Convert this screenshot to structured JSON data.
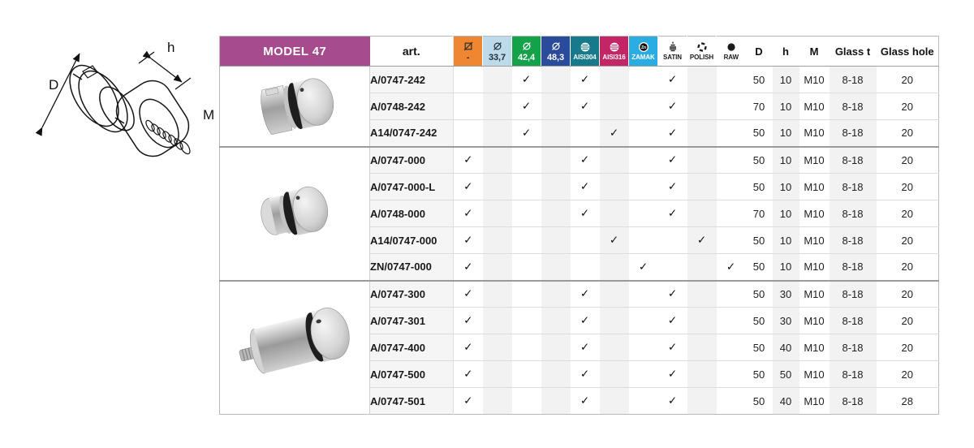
{
  "page": {
    "title": "MODEL 47",
    "check_glyph": "✓"
  },
  "colors": {
    "model_header_bg": "#A74B8F",
    "stripe": "#f2f2f2"
  },
  "diagram": {
    "labels": {
      "D": "D",
      "h": "h",
      "M": "M"
    }
  },
  "table": {
    "art_header": "art.",
    "option_columns": [
      {
        "id": "flat",
        "icon": "no-tube-icon",
        "label": "-",
        "bg": "#EF8632",
        "fg": "#2d2d2d",
        "big_label": true
      },
      {
        "id": "d337",
        "icon": "diameter-icon",
        "label": "33,7",
        "bg": "#BCDAEA",
        "fg": "#22303c",
        "big_label": true
      },
      {
        "id": "d424",
        "icon": "diameter-icon",
        "label": "42,4",
        "bg": "#13A24A",
        "fg": "#ffffff",
        "big_label": true
      },
      {
        "id": "d483",
        "icon": "diameter-icon",
        "label": "48,3",
        "bg": "#2A4B9B",
        "fg": "#ffffff",
        "big_label": true
      },
      {
        "id": "aisi304",
        "icon": "steel-sphere-icon",
        "label": "AISI304",
        "bg": "#177A8C",
        "fg": "#ffffff",
        "big_label": false
      },
      {
        "id": "aisi316",
        "icon": "steel-sphere-icon",
        "label": "AISI316",
        "bg": "#C32566",
        "fg": "#ffffff",
        "big_label": false
      },
      {
        "id": "zamak",
        "icon": "zinc-icon",
        "label": "ZAMAK",
        "bg": "#2BACE2",
        "fg": "#ffffff",
        "big_label": false
      },
      {
        "id": "satin",
        "icon": "satin-finish-icon",
        "label": "SATIN",
        "bg": "#ffffff",
        "fg": "#1a1a1a",
        "big_label": false
      },
      {
        "id": "polish",
        "icon": "polish-finish-icon",
        "label": "POLISH",
        "bg": "#ffffff",
        "fg": "#1a1a1a",
        "big_label": false
      },
      {
        "id": "raw",
        "icon": "raw-finish-icon",
        "label": "RAW",
        "bg": "#ffffff",
        "fg": "#1a1a1a",
        "big_label": false
      }
    ],
    "spec_columns": [
      "D",
      "h",
      "M",
      "Glass t",
      "Glass hole"
    ],
    "groups": [
      {
        "photo": "tube-mount-adapter",
        "rows": [
          {
            "art": "A/0747-242",
            "checks": [
              "d424",
              "aisi304",
              "satin"
            ],
            "specs": [
              "50",
              "10",
              "M10",
              "8-18",
              "20"
            ]
          },
          {
            "art": "A/0748-242",
            "checks": [
              "d424",
              "aisi304",
              "satin"
            ],
            "specs": [
              "70",
              "10",
              "M10",
              "8-18",
              "20"
            ]
          },
          {
            "art": "A14/0747-242",
            "checks": [
              "d424",
              "aisi316",
              "satin"
            ],
            "specs": [
              "50",
              "10",
              "M10",
              "8-18",
              "20"
            ]
          }
        ]
      },
      {
        "photo": "flat-mount-adapter",
        "rows": [
          {
            "art": "A/0747-000",
            "checks": [
              "flat",
              "aisi304",
              "satin"
            ],
            "specs": [
              "50",
              "10",
              "M10",
              "8-18",
              "20"
            ]
          },
          {
            "art": "A/0747-000-L",
            "checks": [
              "flat",
              "aisi304",
              "satin"
            ],
            "specs": [
              "50",
              "10",
              "M10",
              "8-18",
              "20"
            ]
          },
          {
            "art": "A/0748-000",
            "checks": [
              "flat",
              "aisi304",
              "satin"
            ],
            "specs": [
              "70",
              "10",
              "M10",
              "8-18",
              "20"
            ]
          },
          {
            "art": "A14/0747-000",
            "checks": [
              "flat",
              "aisi316",
              "polish"
            ],
            "specs": [
              "50",
              "10",
              "M10",
              "8-18",
              "20"
            ]
          },
          {
            "art": "ZN/0747-000",
            "checks": [
              "flat",
              "zamak",
              "raw"
            ],
            "specs": [
              "50",
              "10",
              "M10",
              "8-18",
              "20"
            ]
          }
        ]
      },
      {
        "photo": "standoff-adapter",
        "rows": [
          {
            "art": "A/0747-300",
            "checks": [
              "flat",
              "aisi304",
              "satin"
            ],
            "specs": [
              "50",
              "30",
              "M10",
              "8-18",
              "20"
            ]
          },
          {
            "art": "A/0747-301",
            "checks": [
              "flat",
              "aisi304",
              "satin"
            ],
            "specs": [
              "50",
              "30",
              "M10",
              "8-18",
              "20"
            ]
          },
          {
            "art": "A/0747-400",
            "checks": [
              "flat",
              "aisi304",
              "satin"
            ],
            "specs": [
              "50",
              "40",
              "M10",
              "8-18",
              "20"
            ]
          },
          {
            "art": "A/0747-500",
            "checks": [
              "flat",
              "aisi304",
              "satin"
            ],
            "specs": [
              "50",
              "50",
              "M10",
              "8-18",
              "20"
            ]
          },
          {
            "art": "A/0747-501",
            "checks": [
              "flat",
              "aisi304",
              "satin"
            ],
            "specs": [
              "50",
              "40",
              "M10",
              "8-18",
              "28"
            ]
          }
        ]
      }
    ]
  }
}
